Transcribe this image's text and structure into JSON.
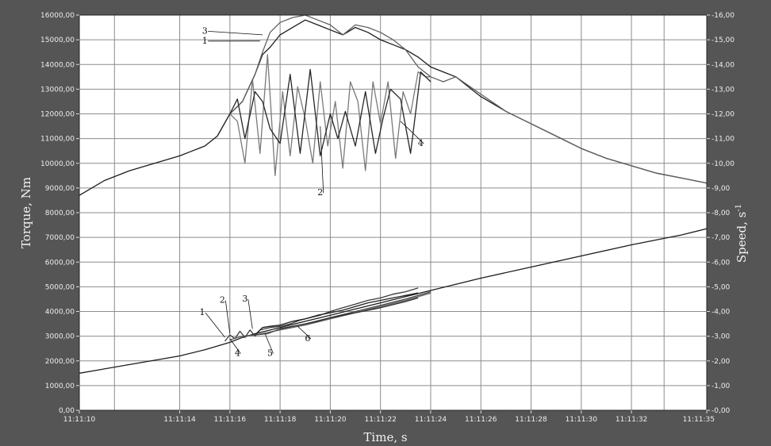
{
  "chart_data": {
    "type": "line",
    "xlabel": "Time, s",
    "ylabel": "Torque, Nm",
    "ylabel2": "Speed, s",
    "ylabel2_superscript": "-1",
    "x_ticks": [
      {
        "label": "11:11:10",
        "t": 0
      },
      {
        "label": "11:11:14",
        "t": 4
      },
      {
        "label": "11:11:16",
        "t": 6
      },
      {
        "label": "11:11:18",
        "t": 8
      },
      {
        "label": "11:11:20",
        "t": 10
      },
      {
        "label": "11:11:22",
        "t": 12
      },
      {
        "label": "11:11:24",
        "t": 14
      },
      {
        "label": "11:11:26",
        "t": 16
      },
      {
        "label": "11:11:28",
        "t": 18
      },
      {
        "label": "11:11:30",
        "t": 20
      },
      {
        "label": "11:11:32",
        "t": 22
      },
      {
        "label": "11:11:35",
        "t": 25
      }
    ],
    "x_gridlines": [
      1.4,
      4,
      6,
      8,
      10,
      12,
      14,
      16,
      18,
      20,
      22,
      23.3
    ],
    "xlim": [
      0,
      25
    ],
    "ylim": [
      0,
      16000
    ],
    "y2lim": [
      0,
      16
    ],
    "y_ticks": [
      "0,00",
      "1000,00",
      "2000,00",
      "3000,00",
      "4000,00",
      "5000,00",
      "6000,00",
      "7000,00",
      "8000,00",
      "9000,00",
      "10000,00",
      "11000,00",
      "12000,00",
      "13000,00",
      "14000,00",
      "15000,00",
      "16000,00"
    ],
    "y2_ticks": [
      "0,00",
      "1,00",
      "2,00",
      "3,00",
      "4,00",
      "5,00",
      "6,00",
      "7,00",
      "8,00",
      "9,00",
      "10,00",
      "11,00",
      "12,00",
      "13,00",
      "14,00",
      "15,00",
      "16,00"
    ],
    "y_gridlines": [
      0,
      1000,
      2000,
      3000,
      4000,
      5000,
      6000,
      7000,
      8000,
      9000,
      10000,
      11000,
      12000,
      13000,
      14000,
      15000,
      16000
    ],
    "grid": true,
    "series": [
      {
        "name": "1",
        "axis": "left",
        "color": "#1c1c1c",
        "x": [
          0,
          1,
          2,
          3,
          4,
          4.5,
          5,
          5.5,
          6,
          6.5,
          7,
          7.3,
          7.6,
          8,
          8.5,
          9,
          9.5,
          10,
          10.5,
          11,
          11.5,
          12,
          12.5,
          13,
          13.5,
          14,
          14.5,
          15,
          16,
          17,
          18,
          19,
          20,
          21,
          22,
          23,
          24,
          25
        ],
        "y": [
          8700,
          9300,
          9700,
          10000,
          10300,
          10500,
          10700,
          11100,
          12000,
          12500,
          13600,
          14400,
          14700,
          15200,
          15500,
          15800,
          15600,
          15400,
          15200,
          15500,
          15300,
          15000,
          14800,
          14600,
          14300,
          13900,
          13700,
          13500,
          12700,
          12100,
          11600,
          11100,
          10600,
          10200,
          9900,
          9600,
          9400,
          9200
        ]
      },
      {
        "name": "2",
        "axis": "left",
        "color": "#7a7a7a",
        "x": [
          6,
          6.3,
          6.6,
          6.9,
          7.2,
          7.5,
          7.8,
          8.1,
          8.4,
          8.7,
          9,
          9.3,
          9.6,
          9.9,
          10.2,
          10.5,
          10.8,
          11.1,
          11.4,
          11.7,
          12,
          12.3,
          12.6,
          12.9,
          13.2,
          13.5,
          13.8,
          14
        ],
        "y": [
          12000,
          11700,
          10000,
          13400,
          10400,
          14400,
          9500,
          12900,
          10300,
          13100,
          11800,
          10000,
          13300,
          10700,
          12500,
          9800,
          13300,
          12500,
          9700,
          13300,
          11600,
          13300,
          10200,
          12900,
          12000,
          13700,
          13500,
          13500
        ]
      },
      {
        "name": "3",
        "axis": "left",
        "color": "#606060",
        "x": [
          6,
          6.5,
          7,
          7.3,
          7.6,
          8,
          8.5,
          9,
          9.5,
          10,
          10.5,
          11,
          11.5,
          12,
          12.5,
          13,
          13.5,
          14,
          14.5,
          15,
          16,
          17,
          18,
          19,
          20,
          21,
          22,
          23,
          24,
          25
        ],
        "y": [
          12000,
          12500,
          13600,
          14500,
          15300,
          15700,
          15900,
          16000,
          15800,
          15600,
          15200,
          15600,
          15500,
          15300,
          15000,
          14600,
          13900,
          13500,
          13300,
          13500,
          12800,
          12100,
          11600,
          11100,
          10600,
          10200,
          9900,
          9600,
          9400,
          9200
        ]
      },
      {
        "name": "4",
        "axis": "left",
        "color": "#262626",
        "x": [
          6,
          6.3,
          6.6,
          7,
          7.3,
          7.6,
          8,
          8.4,
          8.8,
          9.2,
          9.6,
          10,
          10.3,
          10.6,
          11,
          11.4,
          11.8,
          12.1,
          12.4,
          12.8,
          13.2,
          13.6,
          14
        ],
        "y": [
          12000,
          12600,
          11000,
          12900,
          12500,
          11400,
          10800,
          13600,
          10400,
          13800,
          10300,
          12000,
          11000,
          12100,
          10700,
          12900,
          10400,
          11800,
          13000,
          12600,
          10400,
          13700,
          13300
        ]
      },
      {
        "name": "1",
        "axis": "right",
        "color": "#1c1c1c",
        "x": [
          0,
          2,
          4,
          5,
          6,
          6.5,
          7,
          8,
          9,
          10,
          11,
          12,
          13,
          14,
          16,
          18,
          20,
          22,
          24,
          25
        ],
        "y": [
          1.5,
          1.85,
          2.2,
          2.45,
          2.75,
          2.95,
          3.1,
          3.35,
          3.6,
          3.85,
          4.1,
          4.35,
          4.6,
          4.85,
          5.35,
          5.8,
          6.25,
          6.7,
          7.1,
          7.35
        ]
      },
      {
        "name": "2",
        "axis": "right",
        "color": "#3a3a3a",
        "x": [
          5.8,
          6,
          6.2,
          6.4,
          6.6,
          6.8,
          7,
          7.2,
          7.4,
          7.6,
          8,
          8.4,
          8.8,
          9.2,
          9.6,
          10,
          10.5,
          11,
          11.5,
          12,
          12.5,
          13,
          13.5
        ],
        "y": [
          2.8,
          3.05,
          2.9,
          3.2,
          2.95,
          3.25,
          3.0,
          3.25,
          3.3,
          3.35,
          3.4,
          3.5,
          3.65,
          3.75,
          3.85,
          4.0,
          4.15,
          4.3,
          4.45,
          4.55,
          4.7,
          4.8,
          4.95
        ]
      },
      {
        "name": "3",
        "axis": "right",
        "color": "#1e1e1e",
        "x": [
          6.5,
          7,
          7.3,
          7.6,
          8,
          8.5,
          9,
          9.5,
          10,
          10.5,
          11,
          11.5,
          12,
          12.5,
          13,
          13.5
        ],
        "y": [
          3.0,
          3.05,
          3.35,
          3.4,
          3.45,
          3.6,
          3.7,
          3.85,
          3.95,
          4.05,
          4.2,
          4.35,
          4.45,
          4.55,
          4.65,
          4.75
        ]
      },
      {
        "name": "4",
        "axis": "right",
        "color": "#5a5a5a",
        "x": [
          6,
          6.5,
          7,
          7.5,
          8,
          9,
          10,
          11,
          12,
          13,
          14
        ],
        "y": [
          2.85,
          3.0,
          3.05,
          3.15,
          3.25,
          3.45,
          3.7,
          3.95,
          4.2,
          4.45,
          4.75
        ]
      },
      {
        "name": "5",
        "axis": "right",
        "color": "#444444",
        "x": [
          7,
          7.5,
          8,
          8.5,
          9,
          9.5,
          10,
          11,
          12,
          13,
          14
        ],
        "y": [
          3.05,
          3.1,
          3.3,
          3.4,
          3.5,
          3.6,
          3.75,
          4.0,
          4.25,
          4.5,
          4.8
        ]
      },
      {
        "name": "6",
        "axis": "right",
        "color": "#2e2e2e",
        "x": [
          8,
          8.5,
          9,
          9.5,
          10,
          11,
          12,
          13,
          13.5
        ],
        "y": [
          3.3,
          3.4,
          3.5,
          3.62,
          3.75,
          3.95,
          4.15,
          4.4,
          4.55
        ]
      }
    ],
    "curve_labels": [
      {
        "text": "3",
        "x": 5.0,
        "y": 15250,
        "axis": "left",
        "lx": 7.3,
        "ly": 15200
      },
      {
        "text": "1",
        "x": 5.0,
        "y": 14850,
        "axis": "left",
        "lx": 7.2,
        "ly": 14950
      },
      {
        "text": "2",
        "x": 9.6,
        "y": 8700,
        "axis": "left",
        "lx": 9.6,
        "ly": 11500
      },
      {
        "text": "4",
        "x": 13.6,
        "y": 10700,
        "axis": "left",
        "lx": 12.8,
        "ly": 11700
      },
      {
        "text": "1",
        "x": 4.9,
        "y": 3.85,
        "axis": "right",
        "lx": 5.8,
        "ly": 2.95
      },
      {
        "text": "2",
        "x": 5.7,
        "y": 4.35,
        "axis": "right",
        "lx": 6.0,
        "ly": 3.1
      },
      {
        "text": "3",
        "x": 6.6,
        "y": 4.4,
        "axis": "right",
        "lx": 6.9,
        "ly": 3.3
      },
      {
        "text": "4",
        "x": 6.3,
        "y": 2.2,
        "axis": "right",
        "lx": 6.0,
        "ly": 2.9
      },
      {
        "text": "5",
        "x": 7.6,
        "y": 2.2,
        "axis": "right",
        "lx": 7.4,
        "ly": 3.1
      },
      {
        "text": "6",
        "x": 9.1,
        "y": 2.8,
        "axis": "right",
        "lx": 8.7,
        "ly": 3.4
      }
    ]
  }
}
